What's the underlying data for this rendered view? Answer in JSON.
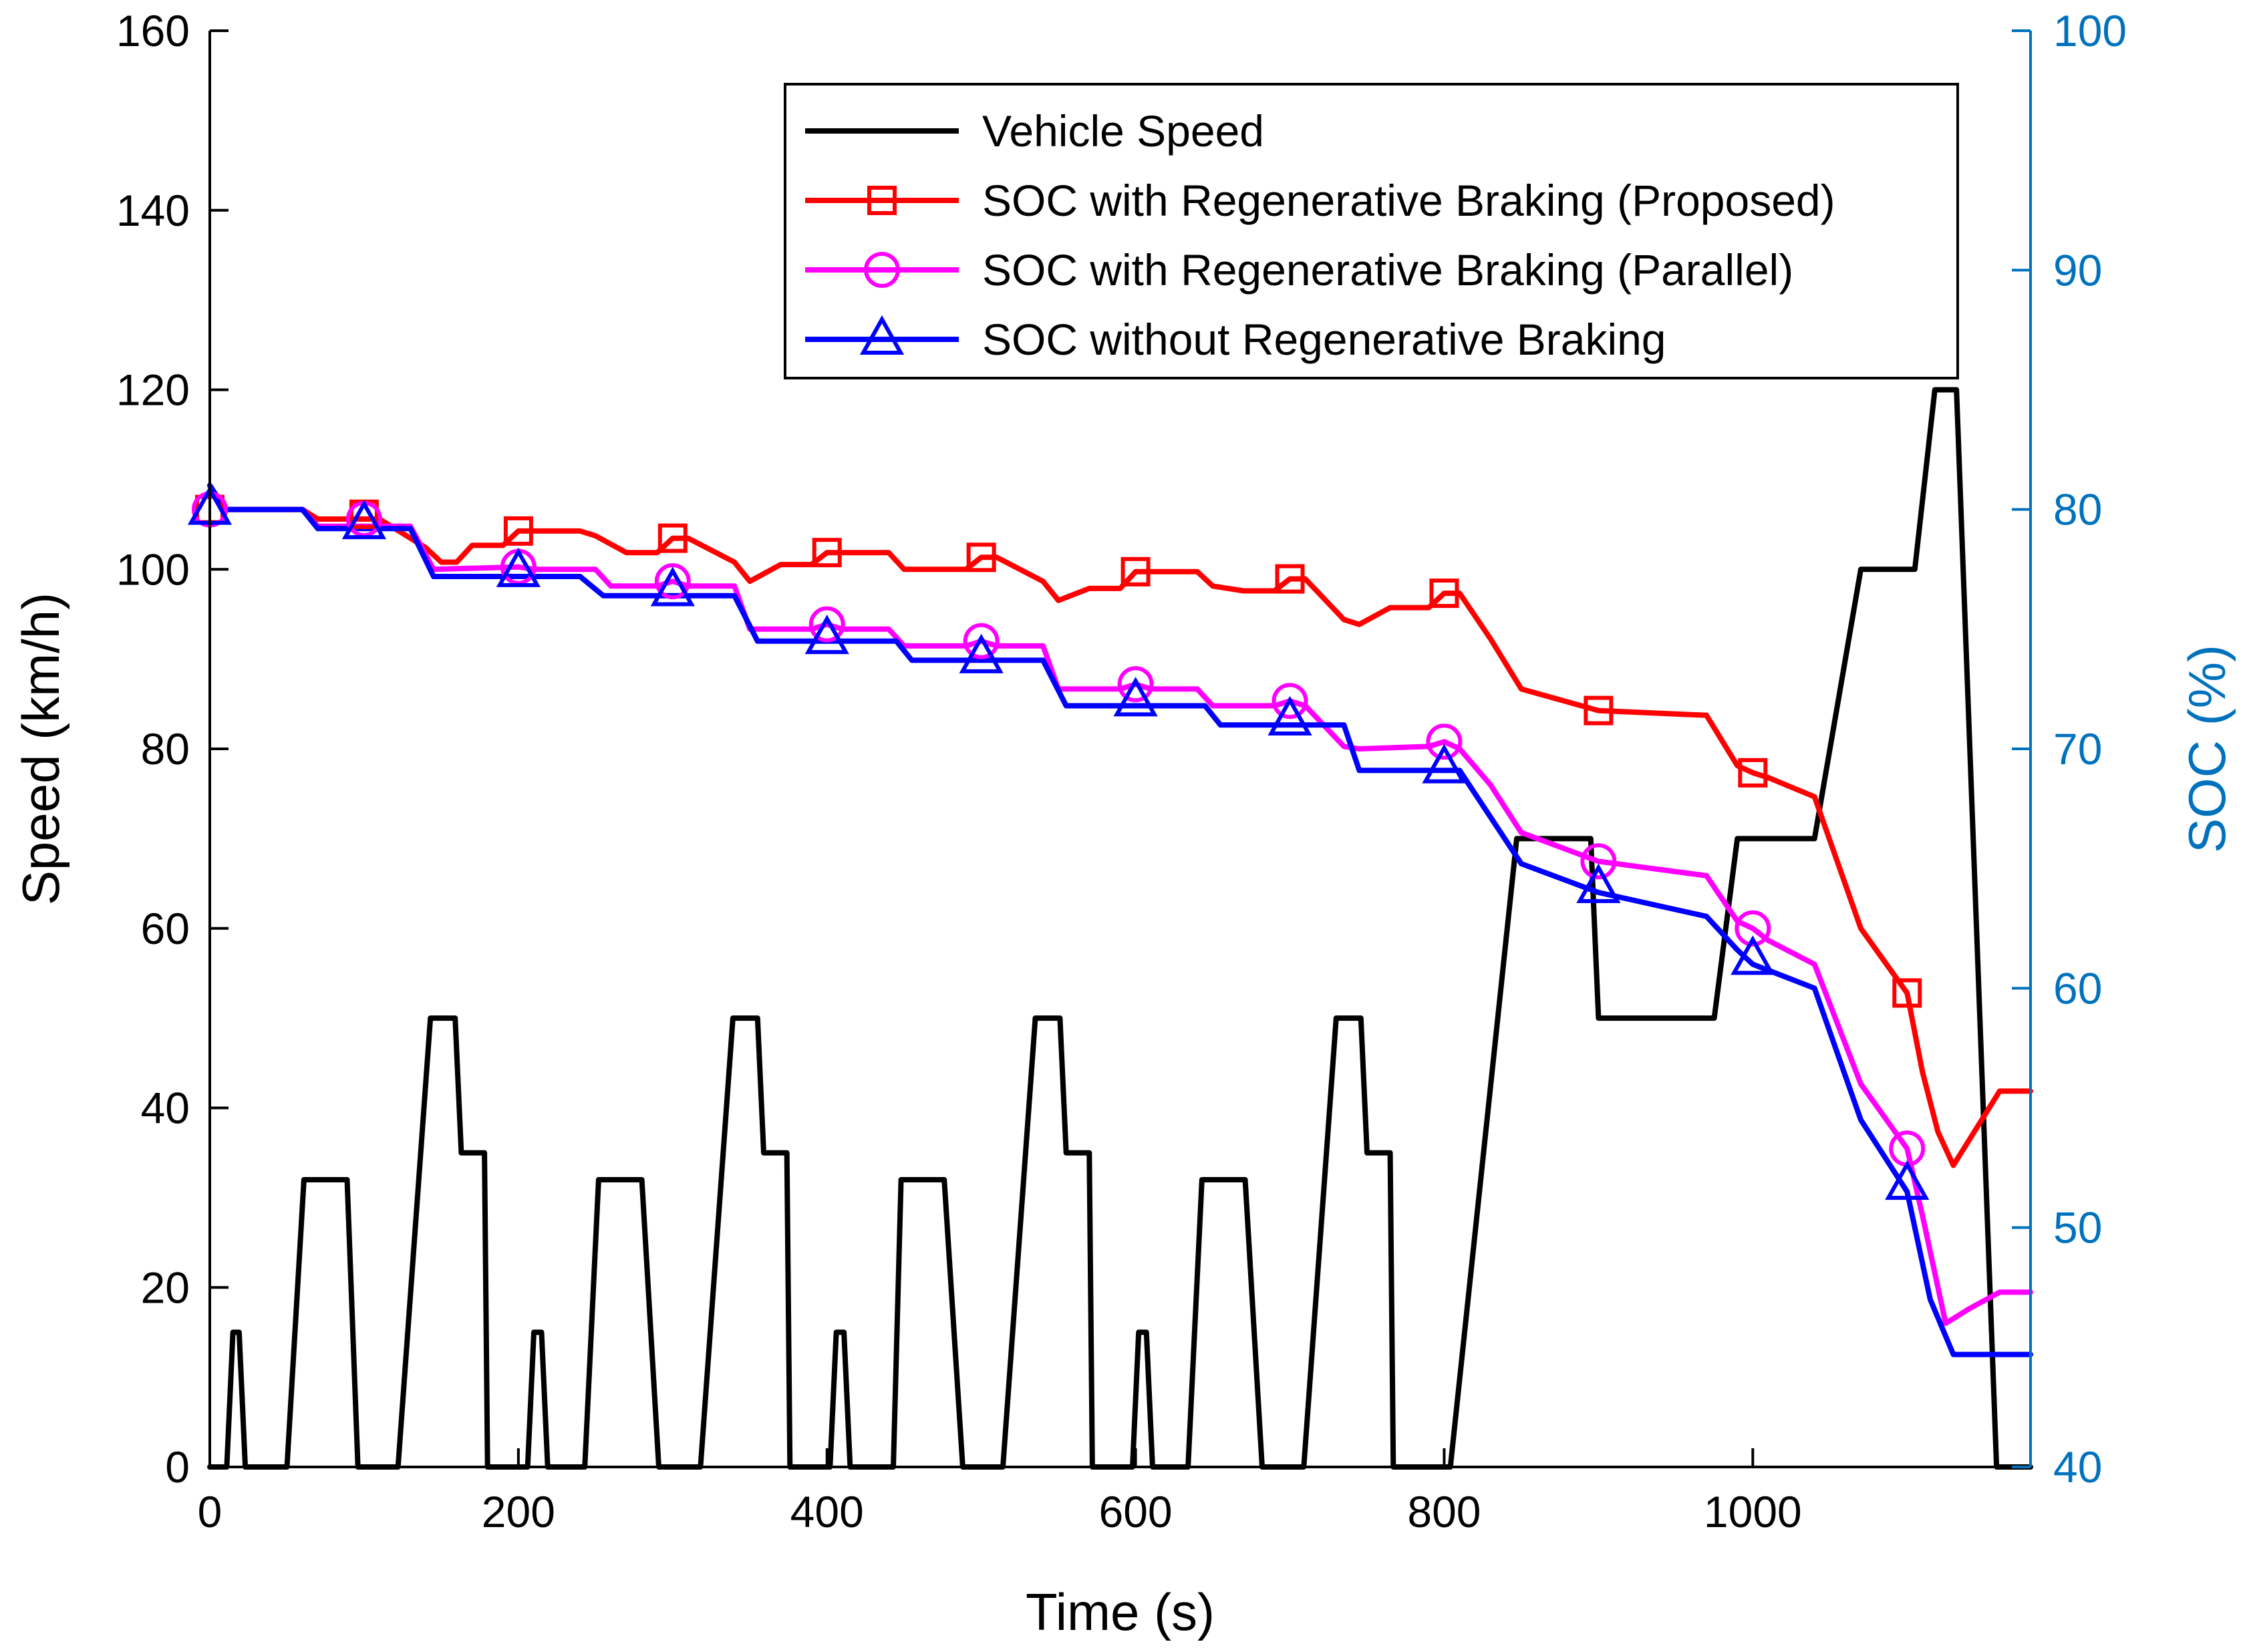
{
  "colors": {
    "speed": "#000000",
    "proposed": "#ff0000",
    "parallel": "#ff00ff",
    "without": "#0000ff",
    "right_axis": "#0072bd"
  },
  "chart_data": {
    "type": "line",
    "xlabel": "Time (s)",
    "ylabel_left": "Speed (km/h)",
    "ylabel_right": "SOC (%)",
    "xlim": [
      0,
      1180
    ],
    "ylim_left": [
      0,
      160
    ],
    "ylim_right": [
      40,
      100
    ],
    "x_ticks": [
      0,
      200,
      400,
      600,
      800,
      1000
    ],
    "x_tick_labels": [
      "0",
      "200",
      "400",
      "600",
      "800",
      "1000"
    ],
    "y_left_ticks": [
      0,
      20,
      40,
      60,
      80,
      100,
      120,
      140,
      160
    ],
    "y_left_tick_labels": [
      "0",
      "20",
      "40",
      "60",
      "80",
      "100",
      "120",
      "140",
      "160"
    ],
    "y_right_ticks": [
      40,
      50,
      60,
      70,
      80,
      90,
      100
    ],
    "y_right_tick_labels": [
      "40",
      "50",
      "60",
      "70",
      "80",
      "90",
      "100"
    ],
    "legend_location": "top-right",
    "series": [
      {
        "name": "Vehicle Speed",
        "axis": "left",
        "marker": "none",
        "x": [
          0,
          11,
          15,
          19,
          23,
          27,
          30,
          50,
          61,
          65,
          85,
          89,
          96,
          100,
          117,
          122,
          143,
          147,
          155,
          159,
          163,
          165,
          176,
          178,
          180,
          188,
          192,
          206,
          210,
          215,
          219,
          222,
          243,
          252,
          256,
          276,
          280,
          291,
          294,
          313,
          318,
          339,
          343,
          351,
          355,
          359,
          361,
          372,
          374,
          376,
          384,
          388,
          402,
          406,
          411,
          415,
          418,
          443,
          448,
          452,
          472,
          476,
          488,
          491,
          509,
          514,
          535,
          539,
          547,
          551,
          555,
          557,
          568,
          570,
          572,
          580,
          584,
          598,
          602,
          607,
          611,
          614,
          634,
          643,
          647,
          667,
          671,
          682,
          685,
          704,
          709,
          730,
          734,
          742,
          746,
          750,
          752,
          763,
          765,
          767,
          775,
          779,
          799,
          804,
          847,
          852,
          893,
          895,
          900,
          904,
          970,
          975,
          990,
          995,
          1035,
          1040,
          1070,
          1075,
          1100,
          1105,
          1118,
          1122,
          1128,
          1132,
          1158,
          1163,
          1180
        ],
        "values": [
          0,
          0,
          15,
          15,
          0,
          0,
          0,
          0,
          32,
          32,
          32,
          32,
          0,
          0,
          0,
          0,
          50,
          50,
          50,
          50,
          35,
          35,
          35,
          35,
          0,
          0,
          0,
          0,
          15,
          15,
          0,
          0,
          0,
          32,
          32,
          32,
          32,
          0,
          0,
          0,
          0,
          50,
          50,
          50,
          50,
          35,
          35,
          35,
          35,
          0,
          0,
          0,
          0,
          15,
          15,
          0,
          0,
          0,
          32,
          32,
          32,
          32,
          0,
          0,
          0,
          0,
          50,
          50,
          50,
          50,
          35,
          35,
          35,
          35,
          0,
          0,
          0,
          0,
          15,
          15,
          0,
          0,
          0,
          32,
          32,
          32,
          32,
          0,
          0,
          0,
          0,
          50,
          50,
          50,
          50,
          35,
          35,
          35,
          35,
          0,
          0,
          0,
          0,
          0,
          70,
          70,
          70,
          70,
          50,
          50,
          50,
          50,
          70,
          70,
          70,
          70,
          100,
          100,
          100,
          100,
          120,
          120,
          120,
          120,
          0,
          0,
          0
        ]
      },
      {
        "name": "SOC with Regenerative Braking (Proposed)",
        "axis": "right",
        "marker": "square",
        "marker_x": [
          0,
          100,
          200,
          300,
          400,
          500,
          600,
          700,
          800,
          900,
          1000,
          1100
        ],
        "marker_values": [
          80,
          79.8,
          79.1,
          78.8,
          78.2,
          78.0,
          77.4,
          77.1,
          76.5,
          71.6,
          69.0,
          59.8
        ],
        "x": [
          0,
          10,
          60,
          70,
          110,
          140,
          150,
          160,
          170,
          190,
          200,
          210,
          240,
          250,
          270,
          290,
          300,
          310,
          340,
          350,
          370,
          390,
          400,
          410,
          440,
          450,
          470,
          490,
          500,
          510,
          540,
          550,
          570,
          590,
          600,
          610,
          640,
          650,
          670,
          690,
          700,
          710,
          735,
          745,
          765,
          790,
          800,
          810,
          830,
          850,
          900,
          970,
          990,
          1000,
          1010,
          1040,
          1070,
          1100,
          1110,
          1120,
          1130,
          1160,
          1180
        ],
        "values": [
          81,
          80,
          80,
          79.6,
          79.6,
          78.4,
          77.8,
          77.8,
          78.5,
          78.5,
          79.1,
          79.1,
          79.1,
          78.9,
          78.2,
          78.2,
          78.8,
          78.8,
          77.8,
          77.0,
          77.7,
          77.7,
          78.2,
          78.2,
          78.2,
          77.5,
          77.5,
          77.5,
          78.0,
          78.0,
          77.0,
          76.2,
          76.7,
          76.7,
          77.4,
          77.4,
          77.4,
          76.8,
          76.6,
          76.6,
          77.1,
          77.1,
          75.4,
          75.2,
          75.9,
          75.9,
          76.5,
          76.5,
          74.6,
          72.5,
          71.6,
          71.4,
          69.3,
          69.0,
          68.8,
          68.0,
          62.5,
          59.8,
          56.5,
          54.0,
          52.6,
          55.7,
          55.7
        ]
      },
      {
        "name": "SOC with Regenerative Braking (Parallel)",
        "axis": "right",
        "marker": "circle",
        "marker_x": [
          0,
          100,
          200,
          300,
          400,
          500,
          600,
          700,
          800,
          900,
          1000,
          1100
        ],
        "marker_values": [
          80,
          79.6,
          77.6,
          77.0,
          75.2,
          74.5,
          72.7,
          72.0,
          70.3,
          65.3,
          62.5,
          53.3
        ],
        "x": [
          0,
          10,
          60,
          70,
          130,
          145,
          200,
          210,
          250,
          260,
          290,
          300,
          310,
          340,
          350,
          390,
          400,
          410,
          440,
          450,
          490,
          500,
          510,
          540,
          550,
          590,
          600,
          610,
          640,
          650,
          690,
          700,
          710,
          735,
          745,
          790,
          800,
          810,
          830,
          850,
          900,
          970,
          990,
          1000,
          1010,
          1040,
          1070,
          1100,
          1110,
          1125,
          1140,
          1160,
          1180
        ],
        "values": [
          81,
          80,
          80,
          79.3,
          79.3,
          77.5,
          77.6,
          77.5,
          77.5,
          76.8,
          76.8,
          77.0,
          76.8,
          76.8,
          75.0,
          75.0,
          75.2,
          75.0,
          75.0,
          74.3,
          74.3,
          74.5,
          74.3,
          74.3,
          72.5,
          72.5,
          72.7,
          72.5,
          72.5,
          71.8,
          71.8,
          72.0,
          71.8,
          70.1,
          70.0,
          70.1,
          70.3,
          70.0,
          68.5,
          66.5,
          65.3,
          64.7,
          62.8,
          62.5,
          62.0,
          61.0,
          56.0,
          53.3,
          50.5,
          46.0,
          46.6,
          47.3,
          47.3
        ]
      },
      {
        "name": "SOC without Regenerative Braking",
        "axis": "right",
        "marker": "triangle",
        "marker_x": [
          0,
          100,
          200,
          300,
          400,
          500,
          600,
          700,
          800,
          900,
          1000,
          1100
        ],
        "marker_values": [
          80,
          79.4,
          77.4,
          76.6,
          74.6,
          73.8,
          72.0,
          71.2,
          69.2,
          64.2,
          61.2,
          51.8
        ],
        "x": [
          0,
          10,
          60,
          70,
          130,
          145,
          240,
          255,
          340,
          355,
          445,
          455,
          540,
          555,
          645,
          655,
          735,
          745,
          810,
          850,
          900,
          970,
          990,
          1000,
          1040,
          1070,
          1100,
          1115,
          1130,
          1180
        ],
        "values": [
          81,
          80,
          80,
          79.2,
          79.2,
          77.2,
          77.2,
          76.4,
          76.4,
          74.5,
          74.5,
          73.7,
          73.7,
          71.8,
          71.8,
          71.0,
          71.0,
          69.1,
          69.1,
          65.2,
          64.0,
          63.0,
          61.6,
          61.0,
          60.0,
          54.5,
          51.5,
          47.0,
          44.7,
          44.7
        ]
      }
    ]
  }
}
